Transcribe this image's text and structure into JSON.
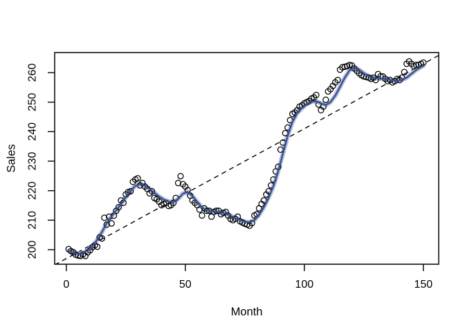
{
  "figure": {
    "background": "#ffffff"
  },
  "chart_data": {
    "type": "scatter",
    "title": "",
    "xlabel": "Month",
    "ylabel": "Sales",
    "x_ticks": [
      0,
      50,
      100,
      150
    ],
    "y_ticks": [
      200,
      210,
      220,
      230,
      240,
      250,
      260
    ],
    "xlim": [
      -5,
      156
    ],
    "ylim": [
      195.5,
      267
    ],
    "grid": false,
    "legend": "none",
    "marker": "open-circle",
    "series": {
      "name": "Monthly sales observations",
      "x_start": 1,
      "x_step": 1,
      "values": [
        200.2,
        199.5,
        199.1,
        198.3,
        198.0,
        197.9,
        198.4,
        197.9,
        199.1,
        199.8,
        200.9,
        201.5,
        201.0,
        204.2,
        203.8,
        210.8,
        208.5,
        211.2,
        208.9,
        211.5,
        213.2,
        214.4,
        216.7,
        215.9,
        218.7,
        219.5,
        219.8,
        223.0,
        223.8,
        224.2,
        221.8,
        222.6,
        221.4,
        220.6,
        219.1,
        219.8,
        217.5,
        217.1,
        216.3,
        215.1,
        215.5,
        215.9,
        214.8,
        215.1,
        215.9,
        217.5,
        222.6,
        224.9,
        222.2,
        221.4,
        220.2,
        218.3,
        216.7,
        215.9,
        215.1,
        213.6,
        211.6,
        214.0,
        213.2,
        213.2,
        211.2,
        212.8,
        213.2,
        213.2,
        212.0,
        212.5,
        212.8,
        211.5,
        210.4,
        210.0,
        210.5,
        211.2,
        209.6,
        209.2,
        208.8,
        208.5,
        208.1,
        209.0,
        211.6,
        212.0,
        214.0,
        215.5,
        216.7,
        218.7,
        219.8,
        221.8,
        223.8,
        226.5,
        228.1,
        233.9,
        236.3,
        239.5,
        241.4,
        243.9,
        246.0,
        246.5,
        247.3,
        248.5,
        248.9,
        249.6,
        250.0,
        250.4,
        251.2,
        251.6,
        252.4,
        249.2,
        247.3,
        248.5,
        250.8,
        253.6,
        254.4,
        255.5,
        256.7,
        257.5,
        261.0,
        261.8,
        262.0,
        262.2,
        262.6,
        262.4,
        261.4,
        260.6,
        259.8,
        259.1,
        258.7,
        258.5,
        258.3,
        257.9,
        258.3,
        257.5,
        259.5,
        258.7,
        258.7,
        257.9,
        257.1,
        257.5,
        256.7,
        257.1,
        257.9,
        257.5,
        258.3,
        260.2,
        263.0,
        263.8,
        263.0,
        262.2,
        262.6,
        262.6,
        263.0,
        263.4
      ]
    },
    "loess_smooth": {
      "name": "loess smooth curve",
      "points": [
        [
          1,
          199.6
        ],
        [
          3,
          199.0
        ],
        [
          5,
          198.6
        ],
        [
          7,
          198.8
        ],
        [
          9,
          199.8
        ],
        [
          11,
          201.3
        ],
        [
          13,
          203.3
        ],
        [
          15,
          206.0
        ],
        [
          17,
          209.0
        ],
        [
          19,
          211.3
        ],
        [
          21,
          213.3
        ],
        [
          23,
          215.5
        ],
        [
          25,
          217.8
        ],
        [
          27,
          220.0
        ],
        [
          29,
          221.6
        ],
        [
          31,
          222.2
        ],
        [
          33,
          221.7
        ],
        [
          35,
          220.6
        ],
        [
          37,
          219.3
        ],
        [
          39,
          218.0
        ],
        [
          41,
          217.0
        ],
        [
          43,
          216.3
        ],
        [
          45,
          216.2
        ],
        [
          47,
          217.2
        ],
        [
          49,
          219.0
        ],
        [
          51,
          219.6
        ],
        [
          53,
          218.2
        ],
        [
          55,
          216.2
        ],
        [
          57,
          214.3
        ],
        [
          59,
          213.4
        ],
        [
          61,
          213.0
        ],
        [
          63,
          212.8
        ],
        [
          65,
          212.6
        ],
        [
          67,
          212.2
        ],
        [
          69,
          211.5
        ],
        [
          71,
          210.7
        ],
        [
          73,
          210.0
        ],
        [
          75,
          209.5
        ],
        [
          77,
          209.3
        ],
        [
          79,
          210.0
        ],
        [
          81,
          211.8
        ],
        [
          83,
          214.4
        ],
        [
          85,
          217.6
        ],
        [
          87,
          221.5
        ],
        [
          89,
          226.5
        ],
        [
          91,
          232.5
        ],
        [
          93,
          238.5
        ],
        [
          95,
          243.3
        ],
        [
          97,
          246.3
        ],
        [
          99,
          248.0
        ],
        [
          101,
          249.3
        ],
        [
          103,
          250.1
        ],
        [
          105,
          250.3
        ],
        [
          107,
          249.6
        ],
        [
          109,
          249.0
        ],
        [
          111,
          250.0
        ],
        [
          113,
          252.2
        ],
        [
          115,
          255.2
        ],
        [
          117,
          258.3
        ],
        [
          119,
          260.8
        ],
        [
          121,
          261.7
        ],
        [
          123,
          261.0
        ],
        [
          125,
          259.8
        ],
        [
          127,
          258.8
        ],
        [
          129,
          258.2
        ],
        [
          131,
          258.0
        ],
        [
          133,
          257.9
        ],
        [
          135,
          257.7
        ],
        [
          137,
          257.4
        ],
        [
          139,
          257.2
        ],
        [
          141,
          257.5
        ],
        [
          143,
          258.3
        ],
        [
          145,
          259.6
        ],
        [
          147,
          260.9
        ],
        [
          149,
          261.9
        ],
        [
          150,
          262.3
        ]
      ]
    },
    "trend_line": {
      "name": "linear trend (dashed)",
      "style": "dashed",
      "intercept": 197.0,
      "slope": 0.44
    },
    "colors": {
      "points": "#000000",
      "loess_core": "#3A4E8C",
      "loess_halo": "#AEBCDA",
      "trend": "#000000",
      "box": "#000000"
    }
  }
}
